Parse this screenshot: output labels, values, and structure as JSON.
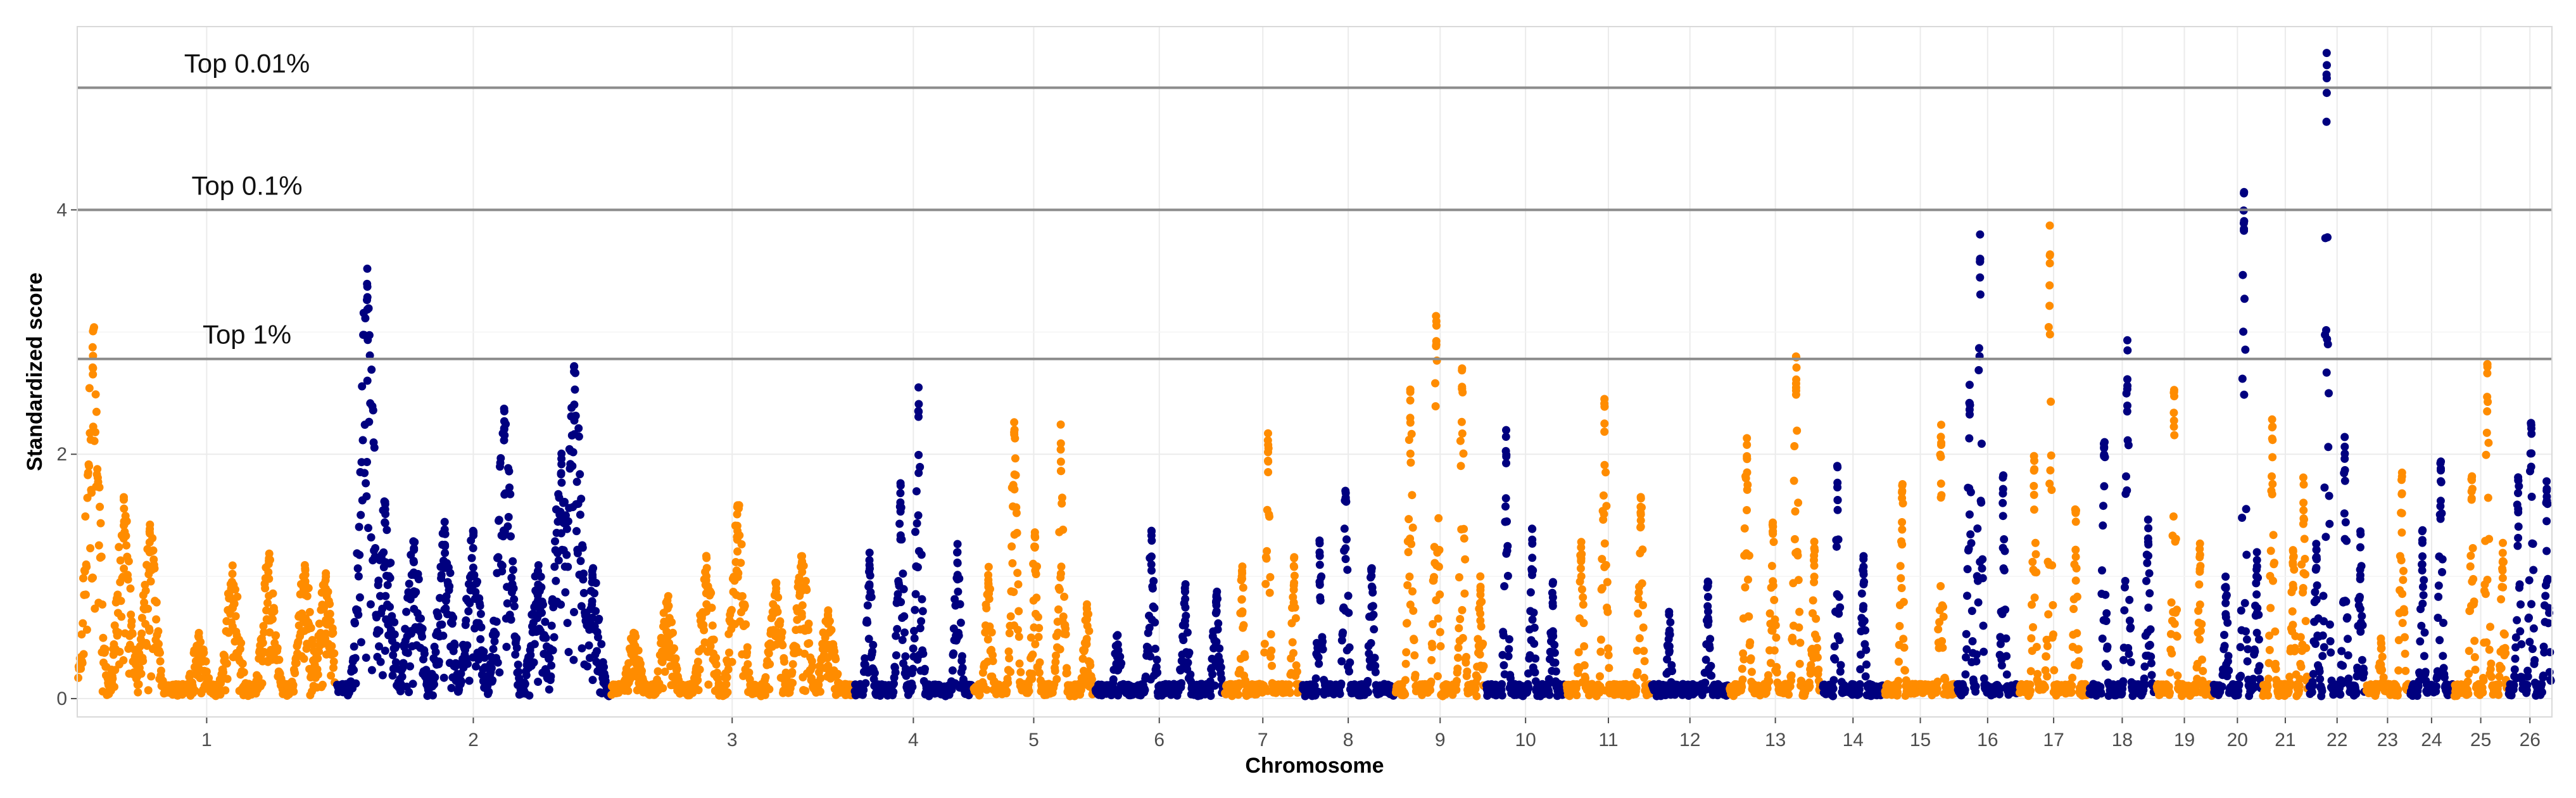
{
  "chart_data": {
    "type": "scatter",
    "subtype": "manhattan",
    "xlabel": "Chromosome",
    "ylabel": "Standardized score",
    "ylim": [
      -0.15,
      5.5
    ],
    "yticks": [
      0,
      2,
      4
    ],
    "grid": true,
    "colors": {
      "odd": "#FF8C00",
      "even": "#00007F",
      "threshold": "#8c8c8c",
      "grid": "#ebebeb"
    },
    "thresholds": [
      {
        "label": "Top 0.01%",
        "value": 5.0
      },
      {
        "label": "Top 0.1%",
        "value": 4.0
      },
      {
        "label": "Top 1%",
        "value": 2.78
      }
    ],
    "chromosomes": [
      {
        "label": "1",
        "start": 0,
        "end": 1000,
        "color": "#FF8C00",
        "peaks": [
          [
            60,
            3.1
          ],
          [
            180,
            1.7
          ],
          [
            280,
            1.45
          ],
          [
            470,
            0.55
          ],
          [
            600,
            1.1
          ],
          [
            740,
            1.2
          ],
          [
            880,
            1.15
          ],
          [
            960,
            1.05
          ]
        ]
      },
      {
        "label": "2",
        "start": 1000,
        "end": 2060,
        "color": "#00007F",
        "peaks": [
          [
            1120,
            3.65
          ],
          [
            1190,
            1.65
          ],
          [
            1300,
            1.3
          ],
          [
            1420,
            1.45
          ],
          [
            1530,
            1.4
          ],
          [
            1650,
            2.45
          ],
          [
            1780,
            1.1
          ],
          [
            1870,
            2.05
          ],
          [
            1920,
            2.8
          ],
          [
            1990,
            1.1
          ]
        ]
      },
      {
        "label": "3",
        "start": 2060,
        "end": 3000,
        "color": "#FF8C00",
        "peaks": [
          [
            2150,
            0.55
          ],
          [
            2280,
            0.85
          ],
          [
            2430,
            1.2
          ],
          [
            2550,
            1.7
          ],
          [
            2700,
            1.0
          ],
          [
            2800,
            1.2
          ],
          [
            2900,
            0.75
          ]
        ]
      },
      {
        "label": "4",
        "start": 3000,
        "end": 3460,
        "color": "#00007F",
        "peaks": [
          [
            3060,
            1.2
          ],
          [
            3180,
            1.8
          ],
          [
            3250,
            2.55
          ],
          [
            3400,
            1.3
          ]
        ]
      },
      {
        "label": "5",
        "start": 3460,
        "end": 3930,
        "color": "#FF8C00",
        "peaks": [
          [
            3520,
            1.1
          ],
          [
            3620,
            2.3
          ],
          [
            3700,
            1.4
          ],
          [
            3800,
            2.25
          ],
          [
            3900,
            0.8
          ]
        ]
      },
      {
        "label": "6",
        "start": 3930,
        "end": 4430,
        "color": "#00007F",
        "peaks": [
          [
            4020,
            0.55
          ],
          [
            4150,
            1.4
          ],
          [
            4280,
            0.95
          ],
          [
            4400,
            0.9
          ]
        ]
      },
      {
        "label": "7",
        "start": 4430,
        "end": 4730,
        "color": "#FF8C00",
        "peaks": [
          [
            4500,
            1.1
          ],
          [
            4600,
            2.25
          ],
          [
            4700,
            1.2
          ]
        ]
      },
      {
        "label": "8",
        "start": 4730,
        "end": 5090,
        "color": "#00007F",
        "peaks": [
          [
            4800,
            1.3
          ],
          [
            4900,
            1.75
          ],
          [
            5000,
            1.1
          ]
        ]
      },
      {
        "label": "9",
        "start": 5090,
        "end": 5440,
        "color": "#FF8C00",
        "peaks": [
          [
            5150,
            2.6
          ],
          [
            5250,
            3.2
          ],
          [
            5350,
            2.8
          ],
          [
            5420,
            1.0
          ]
        ]
      },
      {
        "label": "10",
        "start": 5440,
        "end": 5750,
        "color": "#00007F",
        "peaks": [
          [
            5520,
            2.2
          ],
          [
            5620,
            1.4
          ],
          [
            5700,
            1.0
          ]
        ]
      },
      {
        "label": "11",
        "start": 5750,
        "end": 6080,
        "color": "#FF8C00",
        "peaks": [
          [
            5810,
            1.3
          ],
          [
            5900,
            2.55
          ],
          [
            6040,
            1.75
          ]
        ]
      },
      {
        "label": "12",
        "start": 6080,
        "end": 6380,
        "color": "#00007F",
        "peaks": [
          [
            6150,
            0.75
          ],
          [
            6300,
            1.0
          ]
        ]
      },
      {
        "label": "13",
        "start": 6380,
        "end": 6740,
        "color": "#FF8C00",
        "peaks": [
          [
            6450,
            2.2
          ],
          [
            6550,
            1.5
          ],
          [
            6640,
            2.8
          ],
          [
            6710,
            1.3
          ]
        ]
      },
      {
        "label": "14",
        "start": 6740,
        "end": 6980,
        "color": "#00007F",
        "peaks": [
          [
            6800,
            1.95
          ],
          [
            6900,
            1.2
          ]
        ]
      },
      {
        "label": "15",
        "start": 6980,
        "end": 7260,
        "color": "#FF8C00",
        "peaks": [
          [
            7050,
            1.8
          ],
          [
            7200,
            2.25
          ]
        ]
      },
      {
        "label": "16",
        "start": 7260,
        "end": 7500,
        "color": "#00007F",
        "peaks": [
          [
            7310,
            2.6
          ],
          [
            7350,
            3.85
          ],
          [
            7440,
            1.9
          ]
        ]
      },
      {
        "label": "17",
        "start": 7500,
        "end": 7770,
        "color": "#FF8C00",
        "peaks": [
          [
            7560,
            2.0
          ],
          [
            7620,
            3.9
          ],
          [
            7720,
            1.6
          ]
        ]
      },
      {
        "label": "18",
        "start": 7770,
        "end": 8030,
        "color": "#00007F",
        "peaks": [
          [
            7830,
            2.2
          ],
          [
            7920,
            2.95
          ],
          [
            8000,
            1.55
          ]
        ]
      },
      {
        "label": "19",
        "start": 8030,
        "end": 8250,
        "color": "#FF8C00",
        "peaks": [
          [
            8100,
            2.6
          ],
          [
            8200,
            1.3
          ]
        ]
      },
      {
        "label": "20",
        "start": 8250,
        "end": 8440,
        "color": "#00007F",
        "peaks": [
          [
            8300,
            1.0
          ],
          [
            8370,
            4.2
          ],
          [
            8420,
            1.2
          ]
        ]
      },
      {
        "label": "21",
        "start": 8440,
        "end": 8620,
        "color": "#FF8C00",
        "peaks": [
          [
            8480,
            2.3
          ],
          [
            8560,
            1.3
          ],
          [
            8600,
            1.9
          ]
        ]
      },
      {
        "label": "22",
        "start": 8620,
        "end": 8840,
        "color": "#00007F",
        "peaks": [
          [
            8650,
            1.3
          ],
          [
            8690,
            5.45
          ],
          [
            8760,
            2.25
          ],
          [
            8820,
            1.4
          ]
        ]
      },
      {
        "label": "23",
        "start": 8840,
        "end": 9010,
        "color": "#FF8C00",
        "peaks": [
          [
            8900,
            0.5
          ],
          [
            8980,
            1.9
          ]
        ]
      },
      {
        "label": "24",
        "start": 9010,
        "end": 9180,
        "color": "#00007F",
        "peaks": [
          [
            9060,
            1.4
          ],
          [
            9130,
            1.95
          ]
        ]
      },
      {
        "label": "25",
        "start": 9180,
        "end": 9390,
        "color": "#FF8C00",
        "peaks": [
          [
            9250,
            1.9
          ],
          [
            9310,
            2.85
          ],
          [
            9370,
            1.3
          ]
        ]
      },
      {
        "label": "26",
        "start": 9390,
        "end": 9560,
        "color": "#00007F",
        "peaks": [
          [
            9430,
            1.9
          ],
          [
            9480,
            2.3
          ],
          [
            9540,
            1.8
          ]
        ]
      }
    ]
  }
}
